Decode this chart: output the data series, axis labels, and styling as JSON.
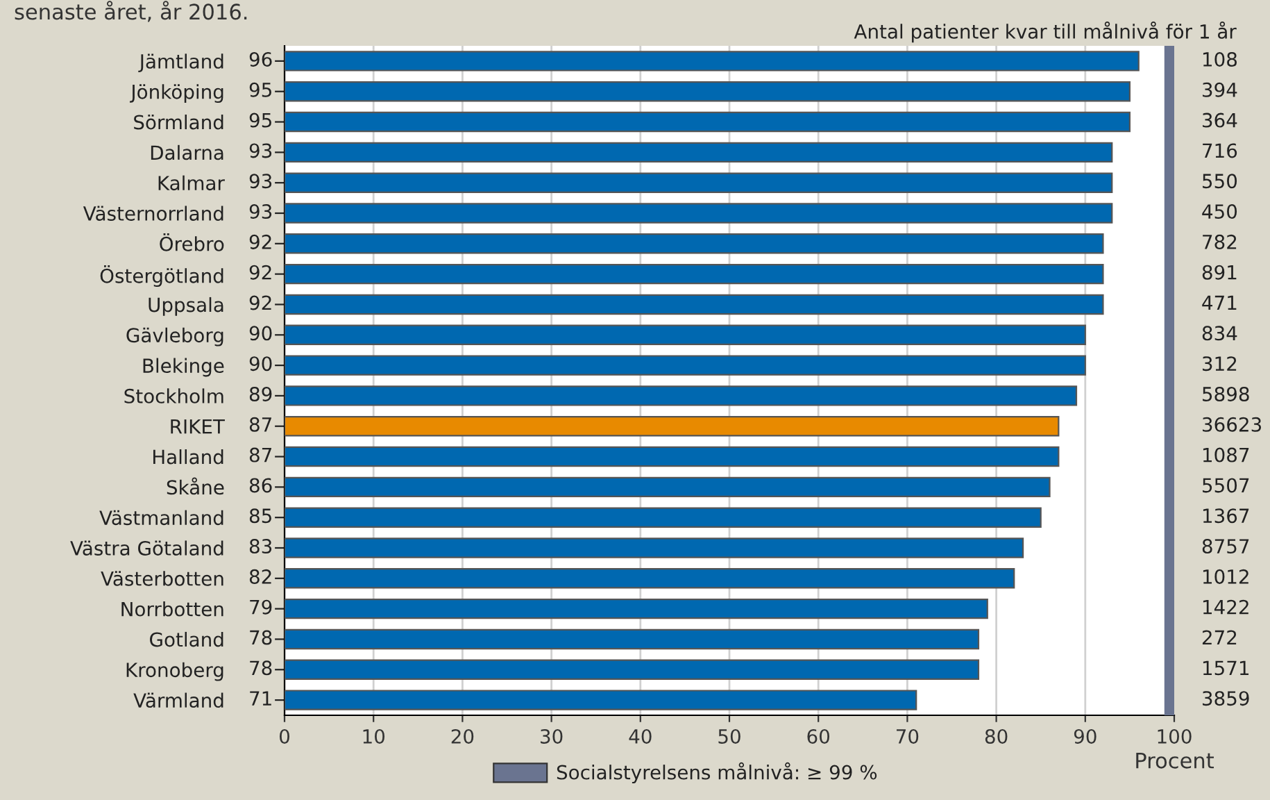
{
  "chart_data": {
    "type": "bar",
    "orientation": "horizontal",
    "title": "senaste året, år 2016.",
    "xlabel": "Procent",
    "categories": [
      "Jämtland",
      "Jönköping",
      "Sörmland",
      "Dalarna",
      "Kalmar",
      "Västernorrland",
      "Örebro",
      "Östergötland",
      "Uppsala",
      "Gävleborg",
      "Blekinge",
      "Stockholm",
      "RIKET",
      "Halland",
      "Skåne",
      "Västmanland",
      "Västra Götaland",
      "Västerbotten",
      "Norrbotten",
      "Gotland",
      "Kronoberg",
      "Värmland"
    ],
    "values": [
      96,
      95,
      95,
      93,
      93,
      93,
      92,
      92,
      92,
      90,
      90,
      89,
      87,
      87,
      86,
      85,
      83,
      82,
      79,
      78,
      78,
      71
    ],
    "colors": [
      "#0068b0",
      "#0068b0",
      "#0068b0",
      "#0068b0",
      "#0068b0",
      "#0068b0",
      "#0068b0",
      "#0068b0",
      "#0068b0",
      "#0068b0",
      "#0068b0",
      "#0068b0",
      "#e88a00",
      "#0068b0",
      "#0068b0",
      "#0068b0",
      "#0068b0",
      "#0068b0",
      "#0068b0",
      "#0068b0",
      "#0068b0",
      "#0068b0"
    ],
    "data_labels": true,
    "xlim": [
      0,
      100
    ],
    "xticks": [
      0,
      10,
      20,
      30,
      40,
      50,
      60,
      70,
      80,
      90,
      100
    ],
    "grid": "x",
    "bands": [
      {
        "axis": "x",
        "from": 99,
        "to": 100,
        "label": "Socialstyrelsens målnivå: ≥ 99 %",
        "color": "#6a7490"
      }
    ],
    "annotations": [
      "Antal patienter kvar till målnivå för 1 år",
      "108",
      "394",
      "364",
      "716",
      "550",
      "450",
      "782",
      "891",
      "471",
      "834",
      "312",
      "5898",
      "36623",
      "1087",
      "5507",
      "1367",
      "8757",
      "1012",
      "1422",
      "272",
      "1571",
      "3859"
    ]
  }
}
